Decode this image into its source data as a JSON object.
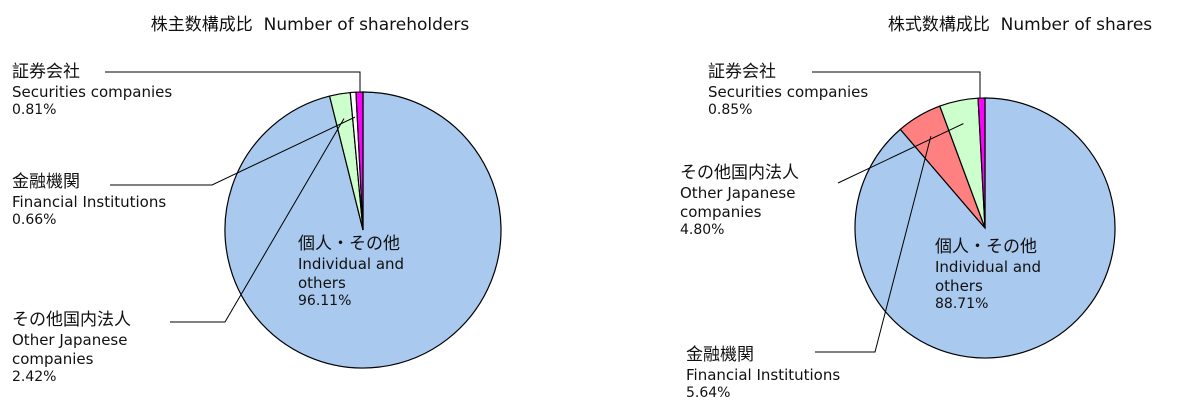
{
  "chart_data": [
    {
      "type": "pie",
      "title": "株主数構成比  Number of shareholders",
      "categories": [
        "個人・その他",
        "その他国内法人",
        "金融機関",
        "証券会社"
      ],
      "categories_en": [
        "Individual and others",
        "Other Japanese companies",
        "Financial Institutions",
        "Securities companies"
      ],
      "values": [
        96.11,
        2.42,
        0.66,
        0.81
      ],
      "value_labels": [
        "96.11%",
        "2.42%",
        "0.66%",
        "0.81%"
      ],
      "colors": [
        "#a9c9ef",
        "#ccffcc",
        "#ffffff",
        "#ff00ff"
      ]
    },
    {
      "type": "pie",
      "title": "株式数構成比  Number of shares",
      "categories": [
        "個人・その他",
        "金融機関",
        "その他国内法人",
        "証券会社"
      ],
      "categories_en": [
        "Individual and others",
        "Financial Institutions",
        "Other Japanese companies",
        "Securities companies"
      ],
      "values": [
        88.71,
        5.64,
        4.8,
        0.85
      ],
      "value_labels": [
        "88.71%",
        "5.64%",
        "4.80%",
        "0.85%"
      ],
      "colors": [
        "#a9c9ef",
        "#ff8080",
        "#ccffcc",
        "#ff00ff"
      ]
    }
  ]
}
